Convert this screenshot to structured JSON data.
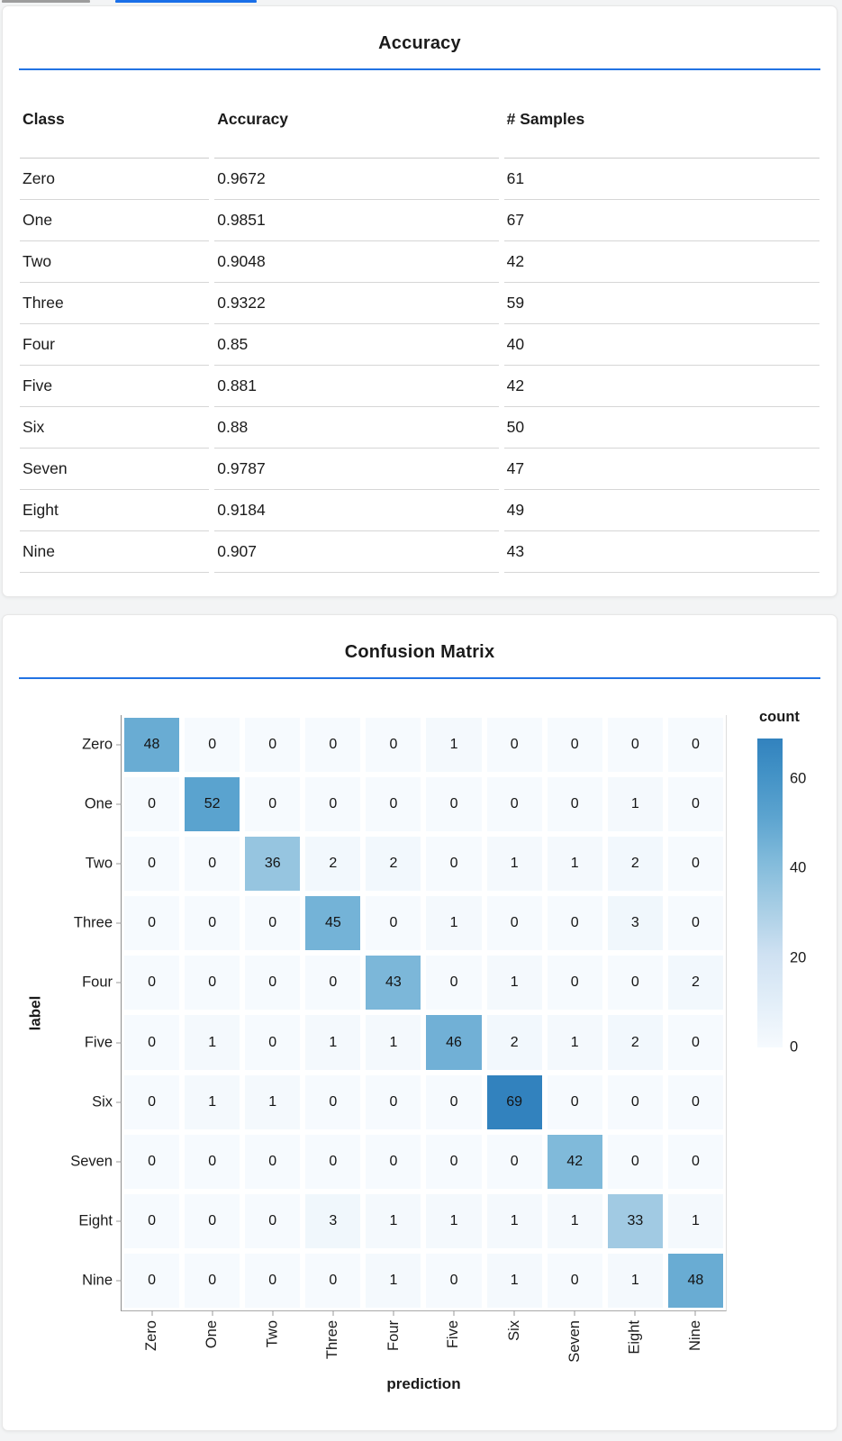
{
  "tabs": {
    "inactive_indicator_color": "#9d9d9d",
    "active_indicator_color": "#1a6fe8"
  },
  "theme": {
    "accent_rule_color": "#2273e3",
    "card_background": "#ffffff",
    "page_background": "#f3f4f5"
  },
  "accuracy_card": {
    "title": "Accuracy",
    "table": {
      "columns": [
        "Class",
        "Accuracy",
        "# Samples"
      ],
      "rows": [
        [
          "Zero",
          "0.9672",
          "61"
        ],
        [
          "One",
          "0.9851",
          "67"
        ],
        [
          "Two",
          "0.9048",
          "42"
        ],
        [
          "Three",
          "0.9322",
          "59"
        ],
        [
          "Four",
          "0.85",
          "40"
        ],
        [
          "Five",
          "0.881",
          "42"
        ],
        [
          "Six",
          "0.88",
          "50"
        ],
        [
          "Seven",
          "0.9787",
          "47"
        ],
        [
          "Eight",
          "0.9184",
          "49"
        ],
        [
          "Nine",
          "0.907",
          "43"
        ]
      ]
    }
  },
  "chart_data": {
    "type": "heatmap",
    "title": "Confusion Matrix",
    "xlabel": "prediction",
    "ylabel": "label",
    "x_categories": [
      "Zero",
      "One",
      "Two",
      "Three",
      "Four",
      "Five",
      "Six",
      "Seven",
      "Eight",
      "Nine"
    ],
    "y_categories": [
      "Zero",
      "One",
      "Two",
      "Three",
      "Four",
      "Five",
      "Six",
      "Seven",
      "Eight",
      "Nine"
    ],
    "values": [
      [
        48,
        0,
        0,
        0,
        0,
        1,
        0,
        0,
        0,
        0
      ],
      [
        0,
        52,
        0,
        0,
        0,
        0,
        0,
        0,
        1,
        0
      ],
      [
        0,
        0,
        36,
        2,
        2,
        0,
        1,
        1,
        2,
        0
      ],
      [
        0,
        0,
        0,
        45,
        0,
        1,
        0,
        0,
        3,
        0
      ],
      [
        0,
        0,
        0,
        0,
        43,
        0,
        1,
        0,
        0,
        2
      ],
      [
        0,
        1,
        0,
        1,
        1,
        46,
        2,
        1,
        2,
        0
      ],
      [
        0,
        1,
        1,
        0,
        0,
        0,
        69,
        0,
        0,
        0
      ],
      [
        0,
        0,
        0,
        0,
        0,
        0,
        0,
        42,
        0,
        0
      ],
      [
        0,
        0,
        0,
        3,
        1,
        1,
        1,
        1,
        33,
        1
      ],
      [
        0,
        0,
        0,
        0,
        1,
        0,
        1,
        0,
        1,
        48
      ]
    ],
    "legend": {
      "title": "count",
      "tick_values": [
        60,
        40,
        20,
        0
      ],
      "domain": [
        0,
        69
      ],
      "position": "right"
    },
    "color_scale": {
      "scheme": "blues",
      "stops": [
        [
          0.0,
          "#f6fafe"
        ],
        [
          0.15,
          "#e2eef8"
        ],
        [
          0.3,
          "#cfe1f2"
        ],
        [
          0.45,
          "#a8cee5"
        ],
        [
          0.6,
          "#82bbdb"
        ],
        [
          0.75,
          "#5ba3cf"
        ],
        [
          0.9,
          "#4090c5"
        ],
        [
          1.0,
          "#3282be"
        ]
      ]
    },
    "grid": false
  }
}
